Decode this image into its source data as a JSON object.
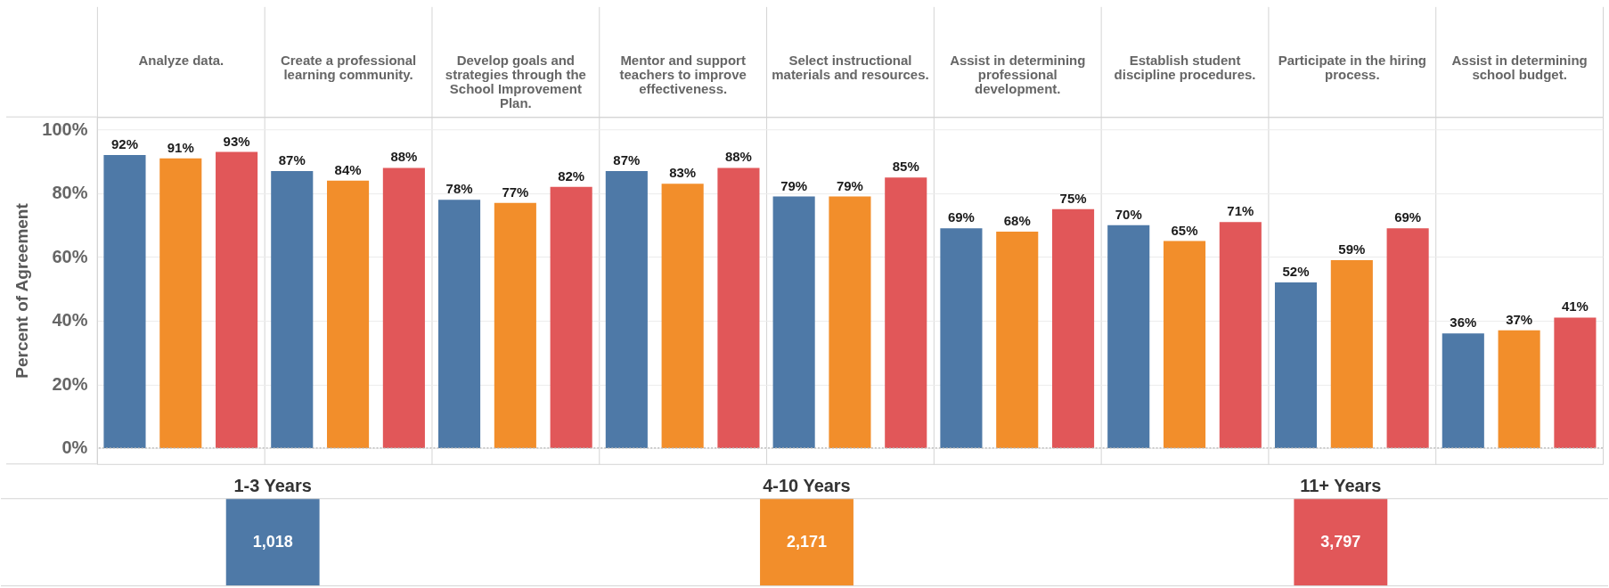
{
  "chart_data": {
    "type": "bar",
    "ylabel": "Percent of Agreement",
    "categories": [
      "Analyze data.",
      "Create a professional learning community.",
      "Develop goals and strategies through the School Improvement Plan.",
      "Mentor and support teachers to improve effectiveness.",
      "Select instructional materials and resources.",
      "Assist in determining professional development.",
      "Establish student discipline procedures.",
      "Participate in the hiring process.",
      "Assist in determining school budget."
    ],
    "series": [
      {
        "name": "1-3 Years",
        "color": "#4e79a7",
        "values": [
          92,
          87,
          78,
          87,
          79,
          69,
          70,
          52,
          36
        ],
        "value_labels": [
          "92%",
          "87%",
          "78%",
          "87%",
          "79%",
          "69%",
          "70%",
          "52%",
          "36%"
        ]
      },
      {
        "name": "4-10 Years",
        "color": "#f28e2b",
        "values": [
          91,
          84,
          77,
          83,
          79,
          68,
          65,
          59,
          37
        ],
        "value_labels": [
          "91%",
          "84%",
          "77%",
          "83%",
          "79%",
          "68%",
          "65%",
          "59%",
          "37%"
        ]
      },
      {
        "name": "11+ Years",
        "color": "#e15759",
        "values": [
          93,
          88,
          82,
          88,
          85,
          75,
          71,
          69,
          41
        ],
        "value_labels": [
          "93%",
          "88%",
          "82%",
          "88%",
          "85%",
          "75%",
          "71%",
          "69%",
          "41%"
        ]
      }
    ],
    "ylim": [
      -5,
      104
    ],
    "yticks": [
      {
        "value": 0,
        "label": "0%"
      },
      {
        "value": 20,
        "label": "20%"
      },
      {
        "value": 40,
        "label": "40%"
      },
      {
        "value": 60,
        "label": "60%"
      },
      {
        "value": 80,
        "label": "80%"
      },
      {
        "value": 100,
        "label": "100%"
      }
    ],
    "grid": "y",
    "legend": "bottom",
    "ref_lines": [
      {
        "axis": "y",
        "value": 0,
        "color": "#b4b4b4",
        "line_style": "dotted"
      }
    ],
    "annotations": [
      "1,018",
      "2,171",
      "3,797"
    ]
  }
}
